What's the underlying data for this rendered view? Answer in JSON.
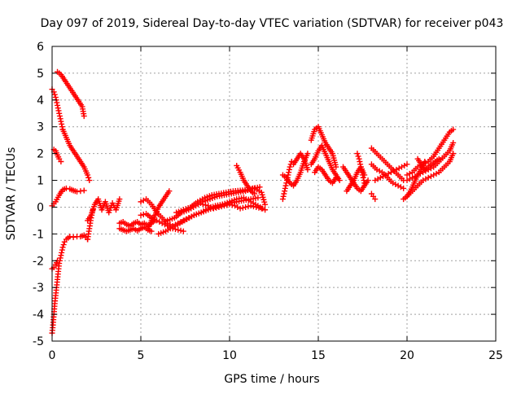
{
  "chart_data": {
    "type": "scatter",
    "title": "Day 097 of 2019, Sidereal Day-to-day VTEC variation (SDTVAR) for receiver p043",
    "xlabel": "GPS time / hours",
    "ylabel": "SDTVAR / TECUs",
    "xlim": [
      0,
      25
    ],
    "ylim": [
      -5,
      6
    ],
    "x_ticks": [
      0,
      5,
      10,
      15,
      20,
      25
    ],
    "y_ticks": [
      -5,
      -4,
      -3,
      -2,
      -1,
      0,
      1,
      2,
      3,
      4,
      5,
      6
    ],
    "x_tick_labels": [
      "0",
      "5",
      "10",
      "15",
      "20",
      "25"
    ],
    "y_tick_labels": [
      "-5",
      "-4",
      "-3",
      "-2",
      "-1",
      "0",
      "1",
      "2",
      "3",
      "4",
      "5",
      "6"
    ],
    "grid": true,
    "marker": "+",
    "marker_color": "#ff0000",
    "series": [
      {
        "name": "p043 arcs",
        "arcs": [
          {
            "x": [
              0.0,
              0.05,
              0.1,
              0.15,
              0.2,
              0.25,
              0.3,
              0.35,
              0.4,
              0.5,
              0.6,
              0.7,
              0.8,
              0.9,
              1.0
            ],
            "y": [
              -4.7,
              -4.4,
              -4.0,
              -3.6,
              -3.3,
              -3.0,
              -2.7,
              -2.4,
              -2.1,
              -1.8,
              -1.5,
              -1.3,
              -1.2,
              -1.15,
              -1.1
            ]
          },
          {
            "x": [
              1.0,
              1.2,
              1.4,
              1.6,
              1.8,
              2.0
            ],
            "y": [
              -1.1,
              -1.12,
              -1.1,
              -1.1,
              -1.05,
              -1.2
            ]
          },
          {
            "x": [
              2.0,
              2.1,
              2.2,
              2.3
            ],
            "y": [
              -1.2,
              -0.8,
              -0.4,
              -0.1
            ]
          },
          {
            "x": [
              0.0,
              0.1,
              0.2,
              0.3
            ],
            "y": [
              -2.3,
              -2.25,
              -2.15,
              -2.0
            ]
          },
          {
            "x": [
              0.0,
              0.2,
              0.4,
              0.6,
              0.8,
              1.0,
              1.2,
              1.4,
              1.6,
              1.8
            ],
            "y": [
              0.05,
              0.2,
              0.45,
              0.65,
              0.7,
              0.68,
              0.62,
              0.58,
              0.6,
              0.62
            ]
          },
          {
            "x": [
              0.0,
              0.1,
              0.2,
              0.3,
              0.4,
              0.5,
              0.6
            ],
            "y": [
              4.4,
              4.3,
              4.1,
              3.8,
              3.5,
              3.2,
              2.9
            ]
          },
          {
            "x": [
              0.6,
              0.8,
              1.0,
              1.2,
              1.4,
              1.6,
              1.8,
              2.0,
              2.1
            ],
            "y": [
              2.9,
              2.6,
              2.3,
              2.1,
              1.9,
              1.7,
              1.5,
              1.2,
              1.0
            ]
          },
          {
            "x": [
              0.1,
              0.2,
              0.3,
              0.4,
              0.5
            ],
            "y": [
              2.15,
              2.1,
              1.95,
              1.8,
              1.7
            ]
          },
          {
            "x": [
              0.3,
              0.5,
              0.7,
              0.9,
              1.1,
              1.3,
              1.5,
              1.7,
              1.8
            ],
            "y": [
              5.05,
              4.95,
              4.75,
              4.55,
              4.35,
              4.15,
              3.95,
              3.75,
              3.4
            ]
          },
          {
            "x": [
              2.0,
              2.2,
              2.4,
              2.6,
              2.8,
              3.0,
              3.2,
              3.4,
              3.6,
              3.8
            ],
            "y": [
              -0.5,
              -0.3,
              0.1,
              0.3,
              -0.1,
              0.2,
              -0.2,
              0.15,
              -0.1,
              0.3
            ]
          },
          {
            "x": [
              3.8,
              4.0,
              4.2,
              4.4,
              4.6,
              4.8,
              5.0,
              5.2,
              5.4,
              5.6,
              5.8
            ],
            "y": [
              -0.6,
              -0.55,
              -0.65,
              -0.7,
              -0.6,
              -0.55,
              -0.65,
              -0.6,
              -0.7,
              -0.6,
              -0.5
            ]
          },
          {
            "x": [
              3.8,
              4.0,
              4.2,
              4.4,
              4.6,
              4.8,
              5.0,
              5.2,
              5.4,
              5.6
            ],
            "y": [
              -0.8,
              -0.85,
              -0.9,
              -0.85,
              -0.8,
              -0.88,
              -0.8,
              -0.75,
              -0.85,
              -0.9
            ]
          },
          {
            "x": [
              5.0,
              5.3,
              5.6,
              5.9,
              6.2,
              6.5,
              6.8,
              7.1,
              7.4
            ],
            "y": [
              -0.3,
              -0.25,
              -0.4,
              -0.5,
              -0.6,
              -0.7,
              -0.8,
              -0.85,
              -0.9
            ]
          },
          {
            "x": [
              5.4,
              5.6,
              5.8,
              6.0,
              6.2,
              6.4,
              6.6
            ],
            "y": [
              -0.8,
              -0.5,
              -0.3,
              0.0,
              0.2,
              0.4,
              0.6
            ]
          },
          {
            "x": [
              5.0,
              5.3,
              5.6,
              5.9,
              6.2,
              6.5,
              6.8,
              7.1,
              7.4,
              7.7,
              8.0
            ],
            "y": [
              0.2,
              0.3,
              0.1,
              -0.2,
              -0.4,
              -0.6,
              -0.7,
              -0.6,
              -0.5,
              -0.4,
              -0.3
            ]
          },
          {
            "x": [
              6.0,
              6.4,
              6.8,
              7.2,
              7.6,
              8.0,
              8.4,
              8.8,
              9.2,
              9.6,
              10.0,
              10.4,
              10.8,
              11.2,
              11.6
            ],
            "y": [
              -1.0,
              -0.9,
              -0.75,
              -0.6,
              -0.45,
              -0.3,
              -0.2,
              -0.1,
              0.0,
              0.1,
              0.15,
              0.2,
              0.25,
              0.3,
              0.35
            ]
          },
          {
            "x": [
              6.5,
              6.9,
              7.3,
              7.7,
              8.1,
              8.5,
              8.9,
              9.3,
              9.7,
              10.1,
              10.5,
              10.9,
              11.3,
              11.7
            ],
            "y": [
              -0.5,
              -0.4,
              -0.2,
              -0.1,
              0.05,
              0.2,
              0.3,
              0.4,
              0.45,
              0.5,
              0.55,
              0.6,
              0.7,
              0.75
            ]
          },
          {
            "x": [
              7.0,
              7.4,
              7.8,
              8.2,
              8.6,
              9.0,
              9.4,
              9.8,
              10.2,
              10.6,
              11.0,
              11.4,
              11.8,
              12.0
            ],
            "y": [
              -0.2,
              -0.1,
              0.0,
              0.2,
              0.35,
              0.45,
              0.5,
              0.55,
              0.6,
              0.62,
              0.65,
              0.7,
              0.55,
              0.1
            ]
          },
          {
            "x": [
              8.0,
              8.4,
              8.8,
              9.2,
              9.6,
              10.0,
              10.4,
              10.8,
              11.2,
              11.6,
              12.0
            ],
            "y": [
              -0.3,
              -0.2,
              -0.05,
              0.05,
              0.1,
              0.2,
              0.3,
              0.35,
              0.2,
              0.05,
              -0.1
            ]
          },
          {
            "x": [
              8.5,
              8.8,
              9.1,
              9.4,
              9.7,
              10.0,
              10.3,
              10.6,
              10.9,
              11.2,
              11.5,
              11.8
            ],
            "y": [
              0.1,
              0.05,
              -0.05,
              0.0,
              0.05,
              0.1,
              0.05,
              -0.05,
              0.0,
              0.05,
              0.0,
              -0.05
            ]
          },
          {
            "x": [
              10.4,
              10.6,
              10.8,
              11.0,
              11.2,
              11.4
            ],
            "y": [
              1.55,
              1.3,
              1.0,
              0.8,
              0.6,
              0.5
            ]
          },
          {
            "x": [
              13.0,
              13.1,
              13.2,
              13.3,
              13.4,
              13.5
            ],
            "y": [
              0.3,
              0.6,
              0.9,
              1.2,
              1.5,
              1.7
            ]
          },
          {
            "x": [
              13.0,
              13.2,
              13.4,
              13.6,
              13.8,
              14.0,
              14.2,
              14.4
            ],
            "y": [
              1.2,
              1.1,
              0.9,
              0.8,
              1.0,
              1.3,
              1.7,
              2.0
            ]
          },
          {
            "x": [
              13.6,
              13.8,
              14.0,
              14.2,
              14.4
            ],
            "y": [
              1.6,
              1.8,
              2.0,
              1.8,
              1.4
            ]
          },
          {
            "x": [
              14.6,
              14.8,
              15.0,
              15.2,
              15.4,
              15.6,
              15.8,
              16.0
            ],
            "y": [
              2.5,
              2.9,
              3.0,
              2.7,
              2.4,
              2.2,
              2.0,
              1.5
            ]
          },
          {
            "x": [
              14.6,
              14.8,
              15.0,
              15.2,
              15.4,
              15.6,
              15.8,
              16.0,
              16.2
            ],
            "y": [
              1.6,
              1.8,
              2.1,
              2.3,
              2.0,
              1.7,
              1.4,
              1.2,
              1.0
            ]
          },
          {
            "x": [
              14.8,
              15.0,
              15.2,
              15.4,
              15.6,
              15.8,
              16.0
            ],
            "y": [
              1.3,
              1.5,
              1.4,
              1.2,
              1.0,
              0.9,
              1.1
            ]
          },
          {
            "x": [
              16.4,
              16.6,
              16.8,
              17.0,
              17.2,
              17.4,
              17.6,
              17.8
            ],
            "y": [
              1.5,
              1.3,
              1.1,
              0.9,
              0.7,
              0.6,
              0.8,
              1.0
            ]
          },
          {
            "x": [
              16.6,
              16.8,
              17.0,
              17.2,
              17.4,
              17.6
            ],
            "y": [
              0.6,
              0.8,
              1.0,
              1.3,
              1.5,
              1.2
            ]
          },
          {
            "x": [
              17.2,
              17.3,
              17.4,
              17.5,
              17.6
            ],
            "y": [
              2.0,
              1.8,
              1.5,
              1.2,
              0.9
            ]
          },
          {
            "x": [
              18.0,
              18.3,
              18.6,
              18.9,
              19.2,
              19.5,
              19.8
            ],
            "y": [
              2.2,
              2.0,
              1.8,
              1.6,
              1.4,
              1.2,
              1.0
            ]
          },
          {
            "x": [
              18.0,
              18.3,
              18.6,
              18.9,
              19.2,
              19.5,
              19.8
            ],
            "y": [
              1.6,
              1.4,
              1.3,
              1.1,
              0.9,
              0.8,
              0.7
            ]
          },
          {
            "x": [
              18.2,
              18.5,
              18.8,
              19.1,
              19.4,
              19.7,
              20.0
            ],
            "y": [
              1.0,
              1.1,
              1.2,
              1.3,
              1.4,
              1.5,
              1.6
            ]
          },
          {
            "x": [
              18.0,
              18.1,
              18.2
            ],
            "y": [
              0.5,
              0.4,
              0.3
            ]
          },
          {
            "x": [
              20.0,
              20.3,
              20.6,
              20.9,
              21.2,
              21.5,
              21.8,
              22.1,
              22.4,
              22.6
            ],
            "y": [
              1.2,
              1.3,
              1.5,
              1.6,
              1.7,
              1.9,
              2.2,
              2.5,
              2.8,
              2.9
            ]
          },
          {
            "x": [
              20.0,
              20.3,
              20.6,
              20.9,
              21.2,
              21.5,
              21.8,
              22.1,
              22.4,
              22.6
            ],
            "y": [
              1.0,
              1.1,
              1.2,
              1.3,
              1.4,
              1.5,
              1.7,
              1.9,
              2.1,
              2.4
            ]
          },
          {
            "x": [
              20.0,
              20.3,
              20.6,
              20.9,
              21.2,
              21.5,
              21.8,
              22.1,
              22.4,
              22.6
            ],
            "y": [
              0.4,
              0.6,
              0.8,
              1.0,
              1.1,
              1.2,
              1.3,
              1.5,
              1.7,
              2.0
            ]
          },
          {
            "x": [
              19.8,
              20.0,
              20.2,
              20.4,
              20.6,
              20.8,
              21.0
            ],
            "y": [
              0.3,
              0.4,
              0.6,
              0.9,
              1.2,
              1.4,
              1.7
            ]
          },
          {
            "x": [
              20.6,
              20.8,
              21.0,
              21.2,
              21.4,
              21.6,
              21.8
            ],
            "y": [
              1.8,
              1.6,
              1.4,
              1.5,
              1.6,
              1.7,
              1.8
            ]
          }
        ]
      }
    ]
  }
}
